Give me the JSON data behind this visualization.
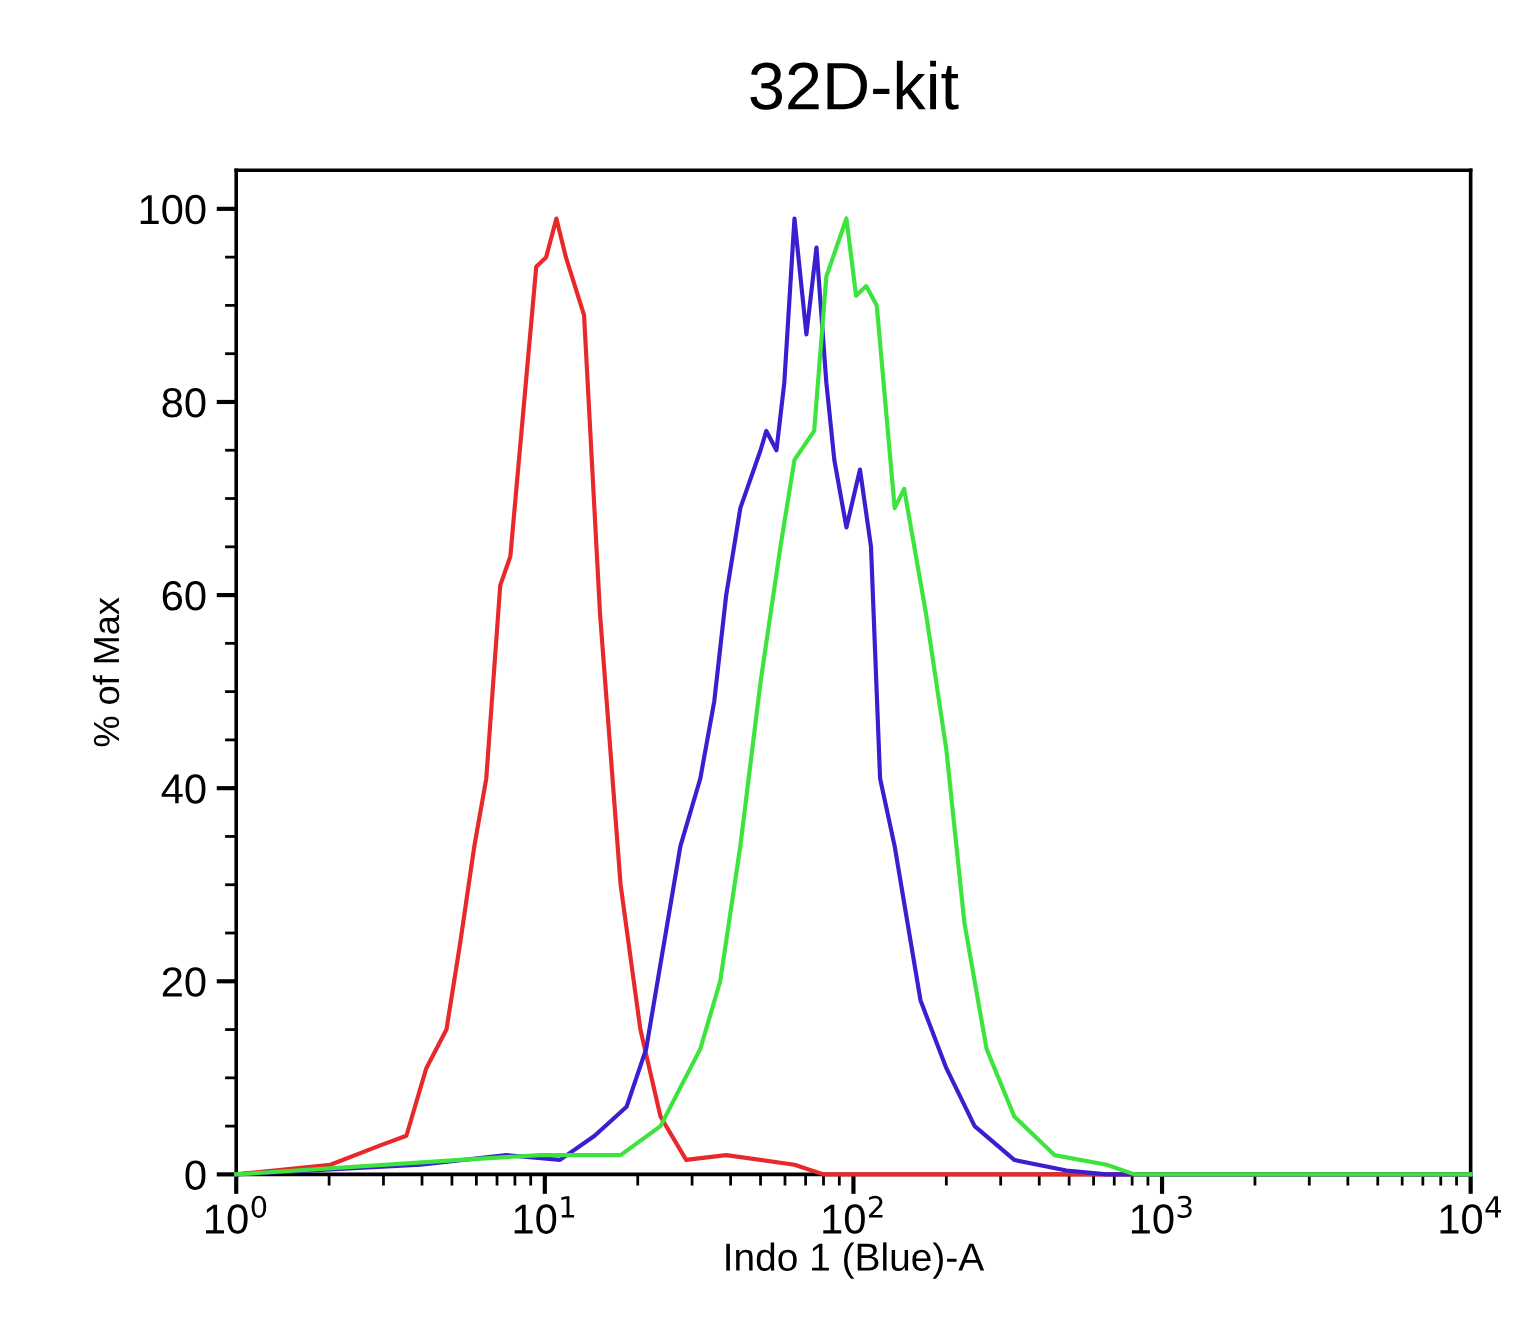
{
  "chart_data": {
    "type": "line",
    "title": "32D-kit",
    "xlabel": "Indo 1 (Blue)-A",
    "ylabel": "% of Max",
    "log": "x",
    "xlim": [
      1,
      10000
    ],
    "xticks": [
      {
        "value": 1,
        "label": "10$^{0}$"
      },
      {
        "value": 10,
        "label": "10$^{1}$"
      },
      {
        "value": 100,
        "label": "10$^{2}$"
      },
      {
        "value": 1000,
        "label": "10$^{3}$"
      },
      {
        "value": 10000,
        "label": "10$^{4}$"
      }
    ],
    "ylim": [
      0,
      104
    ],
    "yticks": [
      0,
      20,
      40,
      60,
      80,
      100
    ],
    "grid": false,
    "marker": "none",
    "line_style": "solid",
    "series": [
      {
        "color": "#e8292b",
        "x": [
          1,
          2.02,
          2.93,
          3.56,
          4.13,
          4.8,
          5.32,
          5.91,
          6.46,
          7.17,
          7.73,
          9.38,
          10.1,
          10.9,
          11.7,
          13.4,
          15.1,
          17.6,
          20.4,
          23.7,
          28.7,
          38.7,
          64.4,
          80,
          10000
        ],
        "values": [
          0,
          1,
          3,
          4,
          11,
          15,
          24,
          34,
          41,
          61,
          64,
          94,
          95,
          99,
          95,
          89,
          58,
          30,
          15,
          6,
          1.5,
          2,
          1,
          0,
          0
        ]
      },
      {
        "color": "#3a1fd0",
        "x": [
          1,
          3.95,
          7.5,
          11.2,
          14.5,
          18.4,
          21.3,
          27.5,
          31.9,
          35.4,
          38.7,
          43,
          50,
          52.2,
          56.3,
          59.7,
          64.4,
          70.4,
          75.9,
          81.7,
          86.7,
          94.9,
          105,
          114,
          122,
          136,
          165,
          200,
          247,
          332,
          490,
          661,
          10000
        ],
        "values": [
          0,
          1,
          2,
          1.5,
          4,
          7,
          13,
          34,
          41,
          49,
          60,
          69,
          75,
          77,
          75,
          82,
          99,
          87,
          96,
          82,
          74,
          67,
          73,
          65,
          41,
          34,
          18,
          11,
          5,
          1.5,
          0.4,
          0,
          0
        ]
      },
      {
        "color": "#3de43d",
        "x": [
          1,
          5.32,
          9.67,
          17.6,
          23.7,
          31.9,
          37,
          43,
          50,
          58,
          64.4,
          74.6,
          81.7,
          94.9,
          102,
          110,
          119,
          136,
          146,
          172,
          200,
          229,
          270,
          332,
          448,
          661,
          815,
          10000
        ],
        "values": [
          0,
          1.5,
          2,
          2,
          5,
          13,
          20,
          34,
          51,
          65,
          74,
          77,
          93,
          99,
          91,
          92,
          90,
          69,
          71,
          58,
          44,
          26,
          13,
          6,
          2,
          1,
          0,
          0
        ]
      }
    ]
  }
}
